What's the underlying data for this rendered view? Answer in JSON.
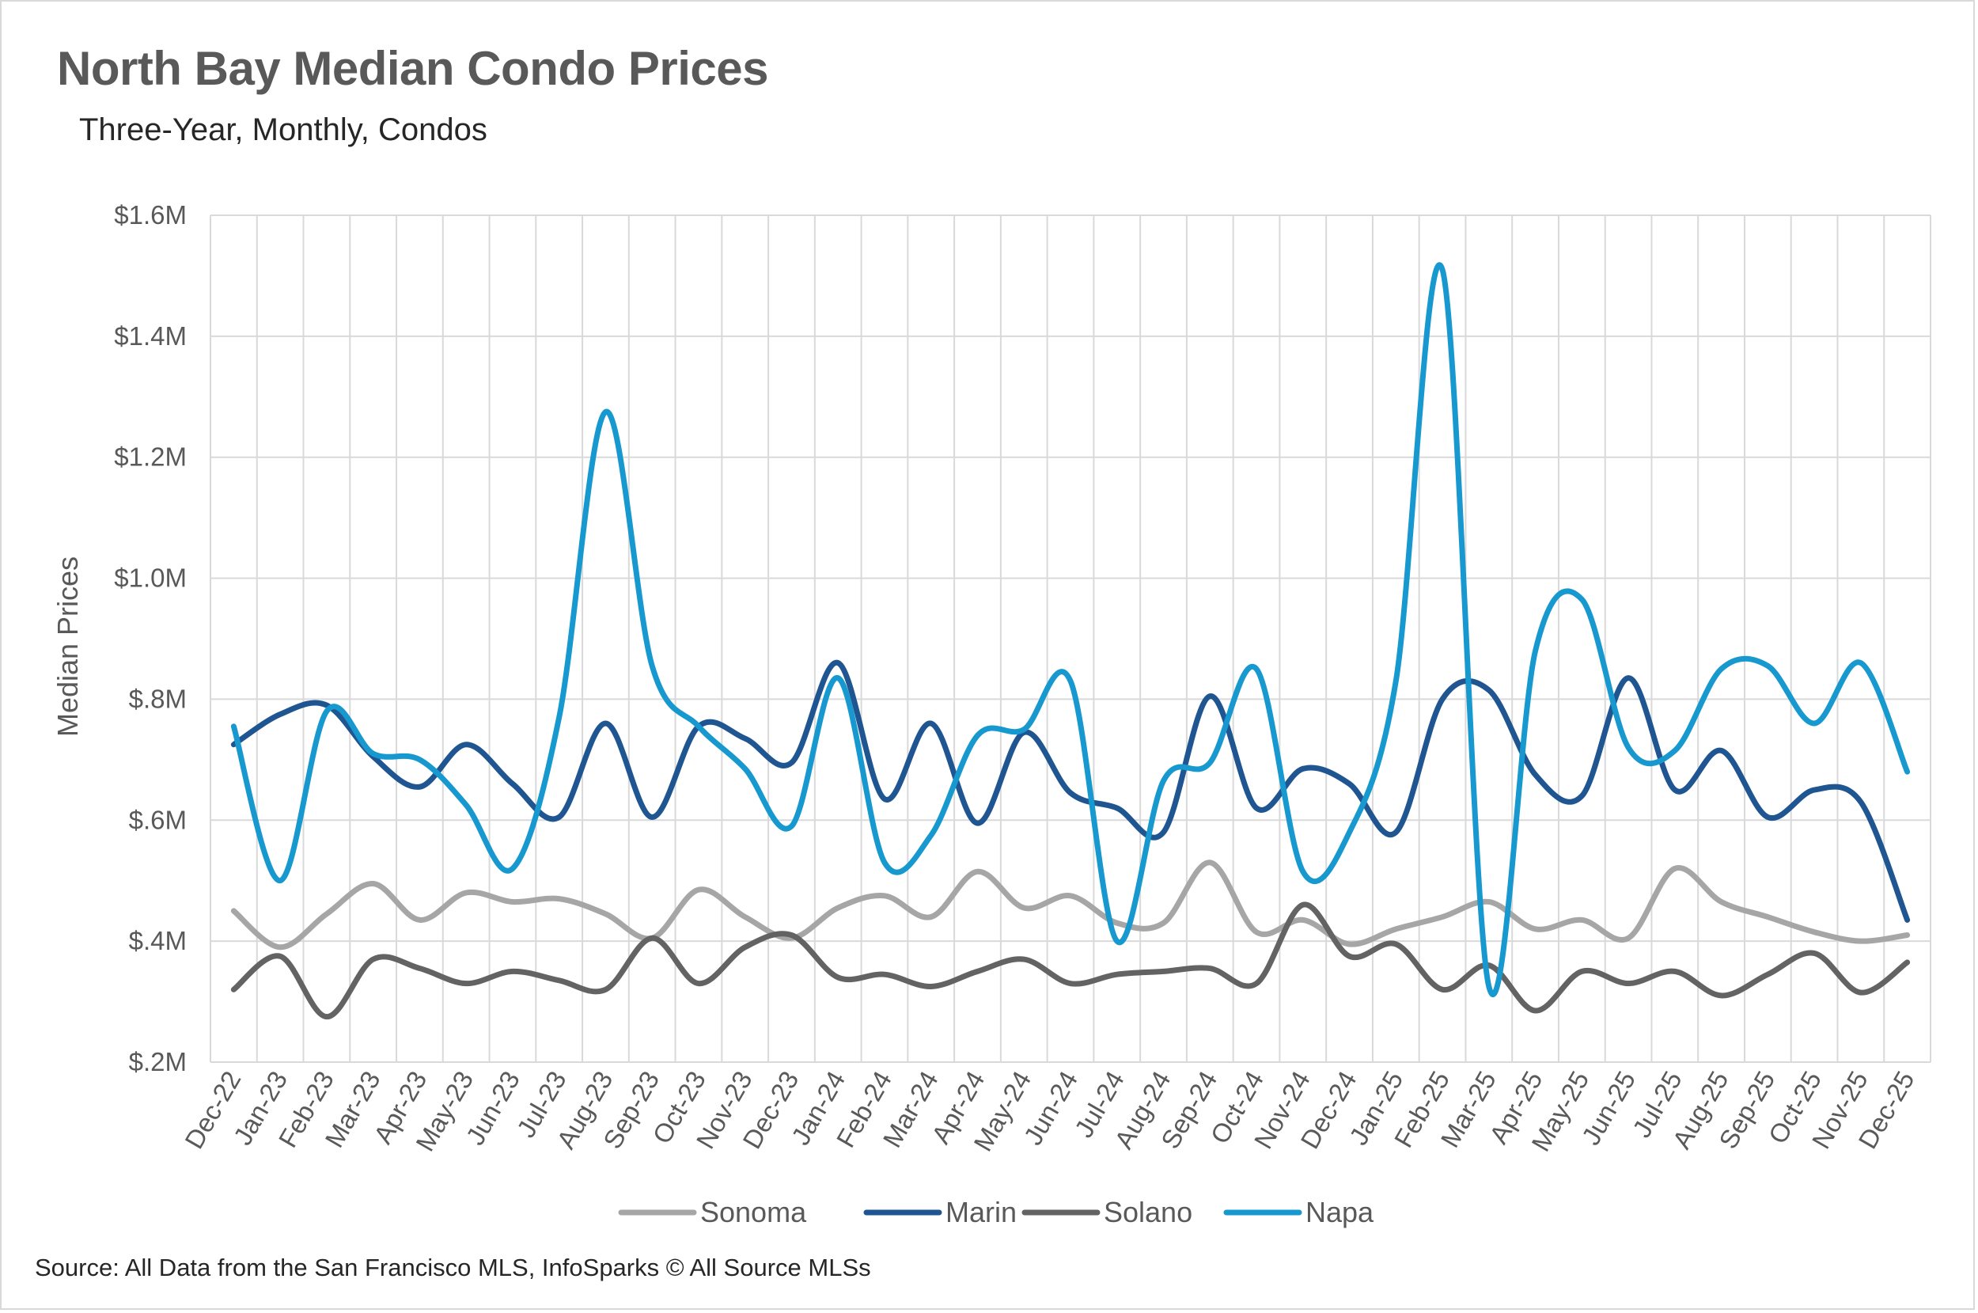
{
  "chart_data": {
    "type": "line",
    "title": "North Bay Median Condo Prices",
    "subtitle": "Three-Year, Monthly, Condos",
    "xlabel": "",
    "ylabel": "Median Prices",
    "ylim": [
      200000,
      1600000
    ],
    "yticks": [
      200000,
      400000,
      600000,
      800000,
      1000000,
      1200000,
      1400000,
      1600000
    ],
    "ytick_labels": [
      "$.2M",
      "$.4M",
      "$.6M",
      "$.8M",
      "$1.0M",
      "$1.2M",
      "$1.4M",
      "$1.6M"
    ],
    "grid": true,
    "legend": "bottom",
    "categories": [
      "Dec-22",
      "Jan-23",
      "Feb-23",
      "Mar-23",
      "Apr-23",
      "May-23",
      "Jun-23",
      "Jul-23",
      "Aug-23",
      "Sep-23",
      "Oct-23",
      "Nov-23",
      "Dec-23",
      "Jan-24",
      "Feb-24",
      "Mar-24",
      "Apr-24",
      "May-24",
      "Jun-24",
      "Jul-24",
      "Aug-24",
      "Sep-24",
      "Oct-24",
      "Nov-24",
      "Dec-24",
      "Jan-25",
      "Feb-25",
      "Mar-25",
      "Apr-25",
      "May-25",
      "Jun-25",
      "Jul-25",
      "Aug-25",
      "Sep-25",
      "Oct-25",
      "Nov-25",
      "Dec-25"
    ],
    "series": [
      {
        "name": "Sonoma",
        "color": "#a6a6a6",
        "values": [
          450000,
          390000,
          445000,
          495000,
          435000,
          480000,
          465000,
          470000,
          445000,
          405000,
          485000,
          440000,
          405000,
          455000,
          475000,
          440000,
          515000,
          455000,
          475000,
          430000,
          430000,
          530000,
          415000,
          435000,
          395000,
          420000,
          440000,
          465000,
          420000,
          435000,
          405000,
          520000,
          465000,
          440000,
          415000,
          400000,
          410000
        ]
      },
      {
        "name": "Marin",
        "color": "#1f5591",
        "values": [
          725000,
          775000,
          790000,
          705000,
          655000,
          725000,
          660000,
          605000,
          760000,
          605000,
          755000,
          735000,
          695000,
          860000,
          635000,
          760000,
          595000,
          745000,
          645000,
          620000,
          580000,
          805000,
          620000,
          685000,
          660000,
          580000,
          800000,
          815000,
          675000,
          640000,
          835000,
          650000,
          715000,
          605000,
          650000,
          630000,
          435000
        ]
      },
      {
        "name": "Solano",
        "color": "#636363",
        "values": [
          320000,
          375000,
          275000,
          370000,
          355000,
          330000,
          350000,
          335000,
          320000,
          405000,
          330000,
          390000,
          410000,
          340000,
          345000,
          325000,
          350000,
          370000,
          330000,
          345000,
          350000,
          355000,
          330000,
          460000,
          375000,
          395000,
          320000,
          360000,
          285000,
          350000,
          330000,
          350000,
          310000,
          345000,
          380000,
          315000,
          365000
        ]
      },
      {
        "name": "Napa",
        "color": "#1799cf",
        "values": [
          755000,
          500000,
          780000,
          710000,
          700000,
          625000,
          520000,
          770000,
          1275000,
          855000,
          755000,
          685000,
          590000,
          835000,
          530000,
          575000,
          740000,
          750000,
          830000,
          400000,
          665000,
          695000,
          850000,
          515000,
          580000,
          830000,
          1510000,
          325000,
          880000,
          965000,
          720000,
          715000,
          850000,
          855000,
          760000,
          860000,
          680000
        ]
      }
    ]
  },
  "footer": {
    "source": "Source: All Data from the San Francisco MLS, InfoSparks © All Source MLSs"
  }
}
